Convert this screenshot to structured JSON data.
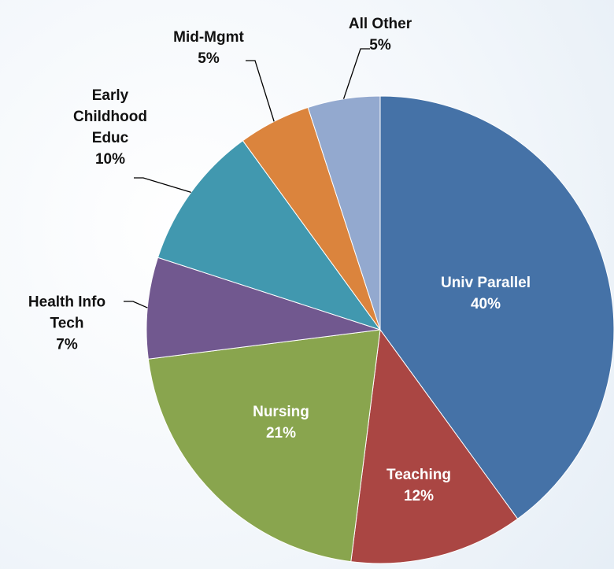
{
  "chart_data": {
    "type": "pie",
    "categories": [
      "Univ Parallel",
      "Teaching",
      "Nursing",
      "Health Info Tech",
      "Early Childhood Educ",
      "Mid-Mgmt",
      "All Other"
    ],
    "values": [
      40,
      12,
      21,
      7,
      10,
      5,
      5
    ],
    "value_labels": [
      "40%",
      "12%",
      "21%",
      "7%",
      "10%",
      "5%",
      "5%"
    ],
    "colors": [
      "#4572a7",
      "#aa4643",
      "#89a54e",
      "#71588f",
      "#4198af",
      "#db843d",
      "#93a9cf"
    ]
  }
}
